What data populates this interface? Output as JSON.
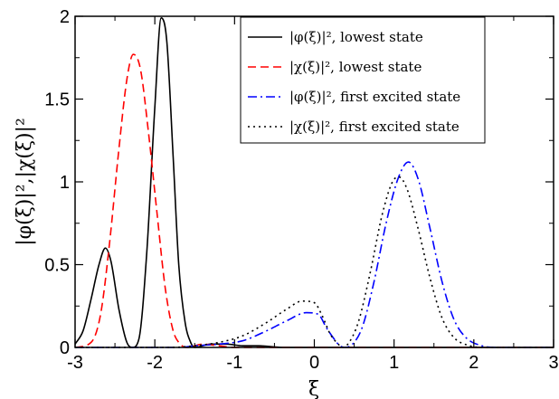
{
  "chart_data": {
    "type": "line",
    "title": "",
    "xlabel": "ξ",
    "ylabel": "|φ(ξ)|²,|χ(ξ)|²",
    "xlim": [
      -3,
      3
    ],
    "ylim": [
      0,
      2
    ],
    "x_ticks": [
      "-3",
      "-2",
      "-1",
      "0",
      "1",
      "2",
      "3"
    ],
    "y_ticks": [
      "0",
      "0.5",
      "1",
      "1.5",
      "2"
    ],
    "grid": false,
    "legend_position": "top-right",
    "series": [
      {
        "name": "|φ(ξ)|², lowest state",
        "color": "#000000",
        "dash": "solid",
        "points": [
          [
            -3.0,
            0.02
          ],
          [
            -2.9,
            0.1
          ],
          [
            -2.8,
            0.29
          ],
          [
            -2.7,
            0.5
          ],
          [
            -2.62,
            0.6
          ],
          [
            -2.55,
            0.52
          ],
          [
            -2.45,
            0.23
          ],
          [
            -2.35,
            0.03
          ],
          [
            -2.28,
            0.0
          ],
          [
            -2.2,
            0.05
          ],
          [
            -2.1,
            0.58
          ],
          [
            -2.0,
            1.45
          ],
          [
            -1.92,
            1.99
          ],
          [
            -1.85,
            1.85
          ],
          [
            -1.77,
            1.15
          ],
          [
            -1.7,
            0.5
          ],
          [
            -1.62,
            0.15
          ],
          [
            -1.55,
            0.03
          ],
          [
            -1.5,
            0.0
          ],
          [
            -1.3,
            0.02
          ],
          [
            -1.1,
            0.02
          ],
          [
            -0.9,
            0.01
          ],
          [
            -0.7,
            0.01
          ],
          [
            -0.4,
            0.0
          ],
          [
            0.0,
            0.0
          ],
          [
            3.0,
            0.0
          ]
        ]
      },
      {
        "name": "|χ(ξ)|², lowest state",
        "color": "#ff0000",
        "dash": "dashed",
        "points": [
          [
            -3.0,
            0.0
          ],
          [
            -2.8,
            0.03
          ],
          [
            -2.68,
            0.2
          ],
          [
            -2.57,
            0.62
          ],
          [
            -2.45,
            1.2
          ],
          [
            -2.35,
            1.62
          ],
          [
            -2.27,
            1.77
          ],
          [
            -2.18,
            1.68
          ],
          [
            -2.08,
            1.3
          ],
          [
            -1.97,
            0.8
          ],
          [
            -1.87,
            0.36
          ],
          [
            -1.77,
            0.1
          ],
          [
            -1.7,
            0.03
          ],
          [
            -1.6,
            0.0
          ],
          [
            -1.4,
            0.02
          ],
          [
            -1.2,
            0.01
          ],
          [
            -1.0,
            0.0
          ],
          [
            3.0,
            0.0
          ]
        ]
      },
      {
        "name": "|φ(ξ)|², first excited state",
        "color": "#0000ff",
        "dash": "dashdot",
        "points": [
          [
            -3.0,
            0.0
          ],
          [
            -1.7,
            0.0
          ],
          [
            -1.5,
            0.01
          ],
          [
            -1.2,
            0.02
          ],
          [
            -0.9,
            0.04
          ],
          [
            -0.6,
            0.1
          ],
          [
            -0.35,
            0.16
          ],
          [
            -0.1,
            0.21
          ],
          [
            0.05,
            0.2
          ],
          [
            0.15,
            0.12
          ],
          [
            0.25,
            0.05
          ],
          [
            0.32,
            0.01
          ],
          [
            0.38,
            0.0
          ],
          [
            0.48,
            0.02
          ],
          [
            0.6,
            0.12
          ],
          [
            0.75,
            0.4
          ],
          [
            0.9,
            0.75
          ],
          [
            1.05,
            1.02
          ],
          [
            1.18,
            1.12
          ],
          [
            1.3,
            1.02
          ],
          [
            1.45,
            0.72
          ],
          [
            1.6,
            0.4
          ],
          [
            1.75,
            0.17
          ],
          [
            1.9,
            0.06
          ],
          [
            2.1,
            0.01
          ],
          [
            2.3,
            0.0
          ],
          [
            3.0,
            0.0
          ]
        ]
      },
      {
        "name": "|χ(ξ)|², first excited state",
        "color": "#000000",
        "dash": "dotted",
        "points": [
          [
            -3.0,
            0.0
          ],
          [
            -1.8,
            0.0
          ],
          [
            -1.5,
            0.01
          ],
          [
            -1.2,
            0.03
          ],
          [
            -0.9,
            0.07
          ],
          [
            -0.6,
            0.15
          ],
          [
            -0.35,
            0.23
          ],
          [
            -0.15,
            0.28
          ],
          [
            0.0,
            0.27
          ],
          [
            0.1,
            0.19
          ],
          [
            0.2,
            0.08
          ],
          [
            0.3,
            0.02
          ],
          [
            0.35,
            0.0
          ],
          [
            0.42,
            0.02
          ],
          [
            0.55,
            0.15
          ],
          [
            0.7,
            0.45
          ],
          [
            0.85,
            0.8
          ],
          [
            0.98,
            1.0
          ],
          [
            1.06,
            1.03
          ],
          [
            1.16,
            0.96
          ],
          [
            1.3,
            0.72
          ],
          [
            1.45,
            0.42
          ],
          [
            1.6,
            0.18
          ],
          [
            1.75,
            0.06
          ],
          [
            1.95,
            0.01
          ],
          [
            2.1,
            0.0
          ],
          [
            3.0,
            0.0
          ]
        ]
      }
    ]
  }
}
